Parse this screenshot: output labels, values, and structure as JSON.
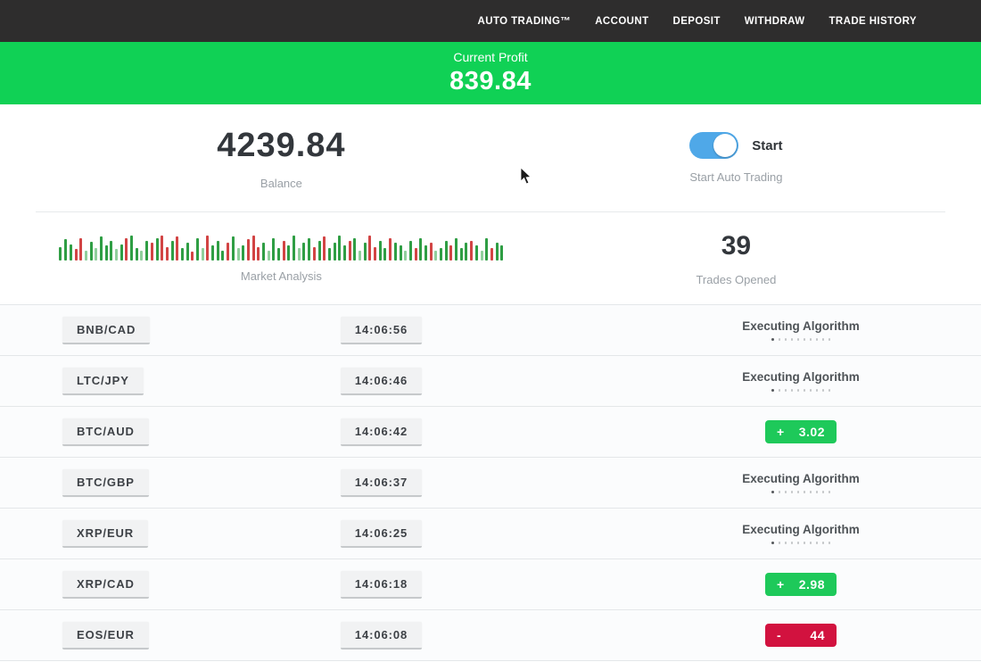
{
  "nav": {
    "items": [
      {
        "label": "AUTO TRADING™"
      },
      {
        "label": "ACCOUNT"
      },
      {
        "label": "DEPOSIT"
      },
      {
        "label": "WITHDRAW"
      },
      {
        "label": "TRADE HISTORY"
      }
    ]
  },
  "banner": {
    "label": "Current Profit",
    "value": "839.84"
  },
  "stats": {
    "balance": {
      "value": "4239.84",
      "label": "Balance"
    },
    "auto_trading": {
      "toggle_label": "Start",
      "label": "Start Auto Trading",
      "toggle_on": true
    },
    "market_analysis": {
      "label": "Market Analysis"
    },
    "trades_opened": {
      "value": "39",
      "label": "Trades Opened"
    }
  },
  "executing_dots_count": 10,
  "chart_data": {
    "type": "bar",
    "title": "Market Analysis",
    "note": "decorative mini candlestick/volume strip, green = up ticks, red = down ticks",
    "bars": [
      [
        0.55,
        "g"
      ],
      [
        0.85,
        "g"
      ],
      [
        0.65,
        "g"
      ],
      [
        0.45,
        "r"
      ],
      [
        0.9,
        "r"
      ],
      [
        0.4,
        "G"
      ],
      [
        0.75,
        "g"
      ],
      [
        0.5,
        "G"
      ],
      [
        0.95,
        "g"
      ],
      [
        0.6,
        "g"
      ],
      [
        0.8,
        "g"
      ],
      [
        0.45,
        "G"
      ],
      [
        0.65,
        "g"
      ],
      [
        0.9,
        "r"
      ],
      [
        1.0,
        "g"
      ],
      [
        0.5,
        "g"
      ],
      [
        0.4,
        "G"
      ],
      [
        0.8,
        "g"
      ],
      [
        0.7,
        "r"
      ],
      [
        0.9,
        "g"
      ],
      [
        1.0,
        "r"
      ],
      [
        0.55,
        "r"
      ],
      [
        0.8,
        "g"
      ],
      [
        0.95,
        "r"
      ],
      [
        0.5,
        "g"
      ],
      [
        0.7,
        "g"
      ],
      [
        0.35,
        "r"
      ],
      [
        0.9,
        "g"
      ],
      [
        0.5,
        "G"
      ],
      [
        1.0,
        "r"
      ],
      [
        0.6,
        "g"
      ],
      [
        0.8,
        "g"
      ],
      [
        0.4,
        "g"
      ],
      [
        0.7,
        "r"
      ],
      [
        0.95,
        "g"
      ],
      [
        0.5,
        "G"
      ],
      [
        0.6,
        "g"
      ],
      [
        0.85,
        "r"
      ],
      [
        1.0,
        "r"
      ],
      [
        0.55,
        "r"
      ],
      [
        0.7,
        "g"
      ],
      [
        0.4,
        "G"
      ],
      [
        0.9,
        "g"
      ],
      [
        0.5,
        "g"
      ],
      [
        0.8,
        "r"
      ],
      [
        0.6,
        "g"
      ],
      [
        1.0,
        "g"
      ],
      [
        0.5,
        "G"
      ],
      [
        0.7,
        "g"
      ],
      [
        0.9,
        "g"
      ],
      [
        0.55,
        "r"
      ],
      [
        0.8,
        "g"
      ],
      [
        0.95,
        "r"
      ],
      [
        0.5,
        "g"
      ],
      [
        0.7,
        "g"
      ],
      [
        1.0,
        "g"
      ],
      [
        0.6,
        "g"
      ],
      [
        0.8,
        "r"
      ],
      [
        0.9,
        "g"
      ],
      [
        0.4,
        "G"
      ],
      [
        0.7,
        "g"
      ],
      [
        1.0,
        "r"
      ],
      [
        0.55,
        "r"
      ],
      [
        0.8,
        "g"
      ],
      [
        0.5,
        "g"
      ],
      [
        0.9,
        "r"
      ],
      [
        0.7,
        "g"
      ],
      [
        0.6,
        "g"
      ],
      [
        0.4,
        "G"
      ],
      [
        0.8,
        "g"
      ],
      [
        0.5,
        "r"
      ],
      [
        0.9,
        "g"
      ],
      [
        0.6,
        "g"
      ],
      [
        0.7,
        "r"
      ],
      [
        0.4,
        "G"
      ],
      [
        0.5,
        "g"
      ],
      [
        0.8,
        "g"
      ],
      [
        0.6,
        "r"
      ],
      [
        0.9,
        "g"
      ],
      [
        0.5,
        "g"
      ],
      [
        0.7,
        "g"
      ],
      [
        0.8,
        "r"
      ],
      [
        0.6,
        "g"
      ],
      [
        0.4,
        "G"
      ],
      [
        0.9,
        "g"
      ],
      [
        0.5,
        "r"
      ],
      [
        0.7,
        "g"
      ],
      [
        0.6,
        "g"
      ]
    ]
  },
  "trades": [
    {
      "pair": "BNB/CAD",
      "time": "14:06:56",
      "status": "executing",
      "status_label": "Executing Algorithm"
    },
    {
      "pair": "LTC/JPY",
      "time": "14:06:46",
      "status": "executing",
      "status_label": "Executing Algorithm"
    },
    {
      "pair": "BTC/AUD",
      "time": "14:06:42",
      "status": "profit",
      "result_sign": "+",
      "result_value": "3.02"
    },
    {
      "pair": "BTC/GBP",
      "time": "14:06:37",
      "status": "executing",
      "status_label": "Executing Algorithm"
    },
    {
      "pair": "XRP/EUR",
      "time": "14:06:25",
      "status": "executing",
      "status_label": "Executing Algorithm"
    },
    {
      "pair": "XRP/CAD",
      "time": "14:06:18",
      "status": "profit",
      "result_sign": "+",
      "result_value": "2.98"
    },
    {
      "pair": "EOS/EUR",
      "time": "14:06:08",
      "status": "loss",
      "result_sign": "-",
      "result_value": "44"
    }
  ],
  "colors": {
    "topbar": "#2e2d2d",
    "accent_green": "#10d155",
    "profit_badge": "#1ec95a",
    "loss_badge": "#d2123f",
    "toggle_blue": "#4fa8e8",
    "bar_green": "#2f9e44",
    "bar_red": "#d24444",
    "bar_light_green": "#90cf9c",
    "bar_light_red": "#e2a3a3"
  }
}
